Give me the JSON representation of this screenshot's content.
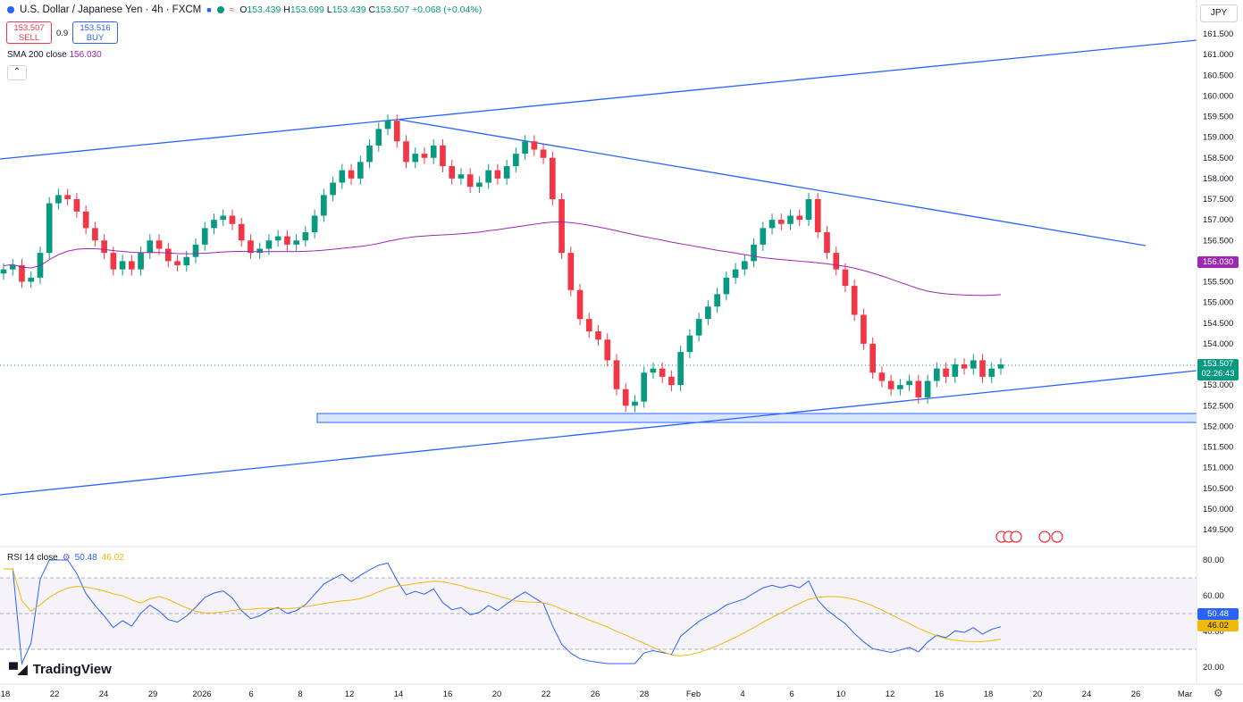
{
  "header": {
    "symbol": "U.S. Dollar / Japanese Yen · 4h · FXCM",
    "ohlc_o_label": "O",
    "ohlc_o": "153.439",
    "ohlc_h_label": "H",
    "ohlc_h": "153.699",
    "ohlc_l_label": "L",
    "ohlc_l": "153.439",
    "ohlc_c_label": "C",
    "ohlc_c": "153.507",
    "change": "+0.068 (+0.04%)",
    "flag_icon": "us-flag-icon"
  },
  "trade": {
    "sell_price": "153.507",
    "sell_label": "SELL",
    "spread": "0.9",
    "buy_price": "153.516",
    "buy_label": "BUY"
  },
  "sma": {
    "label": "SMA 200 close",
    "value": "156.030",
    "color": "#9c27b0"
  },
  "rsi": {
    "label": "RSI 14 close",
    "value": "50.48",
    "ma_value": "46.02",
    "color": "#2962ff",
    "ma_color": "#f0b90b"
  },
  "currency": "JPY",
  "price_axis": [
    "161.500",
    "161.000",
    "160.500",
    "160.000",
    "159.500",
    "159.000",
    "158.500",
    "158.000",
    "157.500",
    "157.000",
    "156.500",
    "156.000",
    "155.500",
    "155.000",
    "154.500",
    "154.000",
    "153.500",
    "153.000",
    "152.500",
    "152.000",
    "151.500",
    "151.000",
    "150.500",
    "150.000",
    "149.500"
  ],
  "rsi_axis": [
    "80.00",
    "60.00",
    "40.00",
    "20.00"
  ],
  "time_axis": [
    "18",
    "22",
    "24",
    "29",
    "2026",
    "6",
    "8",
    "12",
    "14",
    "16",
    "20",
    "22",
    "26",
    "28",
    "Feb",
    "4",
    "6",
    "10",
    "12",
    "16",
    "18",
    "20",
    "24",
    "26",
    "Mar"
  ],
  "last_price": {
    "price": "153.507",
    "countdown": "02:26:43",
    "color": "#089981"
  },
  "sma_badge": {
    "value": "156.030"
  },
  "rsi_badges": {
    "rsi": "50.48",
    "ma": "46.02"
  },
  "branding": {
    "name": "TradingView"
  },
  "colors": {
    "up": "#089981",
    "down": "#f23645",
    "trendline": "#2962ff"
  },
  "chart_data": {
    "type": "candlestick",
    "symbol": "USDJPY",
    "interval": "4h",
    "price_range": [
      149.3,
      161.6
    ],
    "closes": [
      155.8,
      155.9,
      155.5,
      155.6,
      156.2,
      157.4,
      157.6,
      157.5,
      157.2,
      156.8,
      156.5,
      156.2,
      155.8,
      156.0,
      155.8,
      156.2,
      156.5,
      156.3,
      156.0,
      155.9,
      156.1,
      156.4,
      156.8,
      157.0,
      157.1,
      156.9,
      156.5,
      156.2,
      156.3,
      156.5,
      156.6,
      156.4,
      156.5,
      156.7,
      157.1,
      157.6,
      157.9,
      158.2,
      158.0,
      158.4,
      158.8,
      159.2,
      159.4,
      158.9,
      158.4,
      158.6,
      158.5,
      158.8,
      158.3,
      158.0,
      158.1,
      157.8,
      157.9,
      158.2,
      158.0,
      158.3,
      158.6,
      158.9,
      158.7,
      158.5,
      157.5,
      156.2,
      155.3,
      154.6,
      154.3,
      154.1,
      153.6,
      152.9,
      152.5,
      152.6,
      153.3,
      153.4,
      153.2,
      153.0,
      153.8,
      154.2,
      154.6,
      154.9,
      155.2,
      155.6,
      155.8,
      156.0,
      156.4,
      156.8,
      157.0,
      156.9,
      157.1,
      157.0,
      157.5,
      156.7,
      156.2,
      155.8,
      155.4,
      154.7,
      154.0,
      153.3,
      153.1,
      152.9,
      153.0,
      153.1,
      152.7,
      153.1,
      153.4,
      153.2,
      153.5,
      153.4,
      153.6,
      153.2,
      153.4,
      153.5
    ],
    "sma200_series_name": "SMA 200 close",
    "rsi_series_name": "RSI 14 close",
    "rsi_range": [
      15,
      85
    ]
  }
}
